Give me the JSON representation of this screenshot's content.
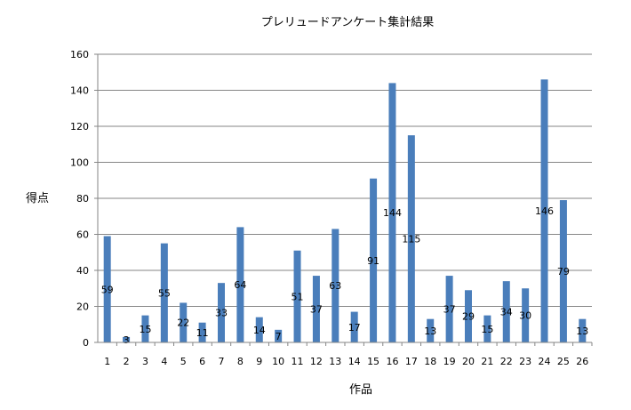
{
  "chart_data": {
    "type": "bar",
    "title": "プレリュードアンケート集計結果",
    "xlabel": "作品",
    "ylabel": "得点",
    "categories": [
      "1",
      "2",
      "3",
      "4",
      "5",
      "6",
      "7",
      "8",
      "9",
      "10",
      "11",
      "12",
      "13",
      "14",
      "15",
      "16",
      "17",
      "18",
      "19",
      "20",
      "21",
      "22",
      "23",
      "24",
      "25",
      "26"
    ],
    "values": [
      59,
      3,
      15,
      55,
      22,
      11,
      33,
      64,
      14,
      7,
      51,
      37,
      63,
      17,
      91,
      144,
      115,
      13,
      37,
      29,
      15,
      34,
      30,
      146,
      79,
      13
    ],
    "ylim": [
      0,
      160
    ],
    "yticks": [
      "0",
      "20",
      "40",
      "60",
      "80",
      "100",
      "120",
      "140",
      "160"
    ],
    "grid": true,
    "legend": "none",
    "colors": {
      "bar": "#4a7ebb",
      "grid": "#868686",
      "axis": "#868686"
    }
  }
}
